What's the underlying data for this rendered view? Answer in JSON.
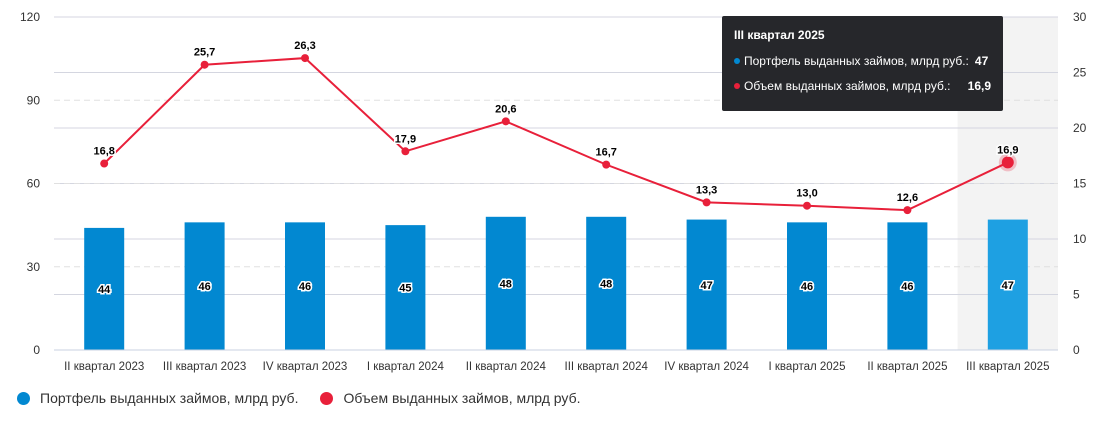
{
  "chart_data": {
    "type": "bar+line",
    "categories": [
      "II квартал 2023",
      "III квартал 2023",
      "IV квартал 2023",
      "I квартал 2024",
      "II квартал 2024",
      "III квартал 2024",
      "IV квартал 2024",
      "I квартал 2025",
      "II квартал 2025",
      "III квартал 2025"
    ],
    "series": [
      {
        "name": "Портфель выданных займов, млрд руб.",
        "type": "bar",
        "axis": "left",
        "color": "#0288d1",
        "values": [
          44,
          46,
          46,
          45,
          48,
          48,
          47,
          46,
          46,
          47
        ],
        "labels": [
          "44",
          "46",
          "46",
          "45",
          "48",
          "48",
          "47",
          "46",
          "46",
          "47"
        ]
      },
      {
        "name": "Объем выданных займов, млрд руб.",
        "type": "line",
        "axis": "right",
        "color": "#e8203a",
        "values": [
          16.8,
          25.7,
          26.3,
          17.9,
          20.6,
          16.7,
          13.3,
          13.0,
          12.6,
          16.9
        ],
        "labels": [
          "16,8",
          "25,7",
          "26,3",
          "17,9",
          "20,6",
          "16,7",
          "13,3",
          "13,0",
          "12,6",
          "16,9"
        ]
      }
    ],
    "left_axis": {
      "min": 0,
      "max": 120,
      "ticks": [
        "0",
        "30",
        "60",
        "90",
        "120"
      ]
    },
    "right_axis": {
      "min": 0,
      "max": 30,
      "ticks": [
        "0",
        "5",
        "10",
        "15",
        "20",
        "25",
        "30"
      ]
    },
    "highlighted_index": 9,
    "highlight_bar_color": "#1ea0e2",
    "legend_position": "bottom-left"
  },
  "tooltip": {
    "title": "III квартал 2025",
    "rows": [
      {
        "label": "Портфель выданных займов, млрд руб.:",
        "value": "47",
        "color": "#0288d1"
      },
      {
        "label": "Объем выданных займов, млрд руб.:",
        "value": "16,9",
        "color": "#e8203a"
      }
    ]
  }
}
